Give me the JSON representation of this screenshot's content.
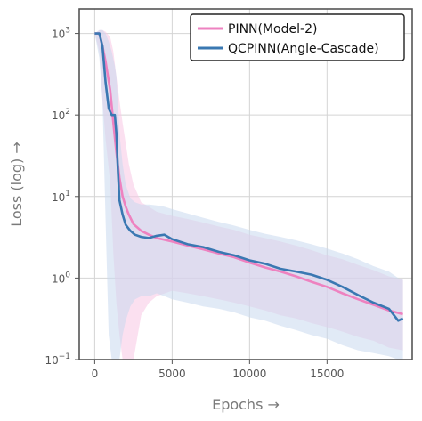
{
  "chart_data": {
    "type": "line",
    "title": "",
    "xlabel": "Epochs →",
    "ylabel": "Loss (log) →",
    "xlim": [
      -1000,
      20500
    ],
    "ylim": [
      0.1,
      2000
    ],
    "y_scale": "log",
    "grid": true,
    "legend_position": "top-right",
    "x_ticks": [
      0,
      5000,
      10000,
      15000
    ],
    "x_tick_labels": [
      "0",
      "5000",
      "10000",
      "15000"
    ],
    "y_ticks": [
      0.1,
      1,
      10,
      100,
      1000
    ],
    "y_tick_labels": [
      "10",
      "10",
      "10",
      "10",
      "10"
    ],
    "y_tick_exponents": [
      "−1",
      "0",
      "1",
      "2",
      "3"
    ],
    "series": [
      {
        "name": "PINN(Model-2)",
        "color": "#ee82c0",
        "band_color": "#f7c6e4",
        "x": [
          0,
          300,
          500,
          700,
          1000,
          1200,
          1400,
          1600,
          1800,
          2000,
          2200,
          2500,
          3000,
          3500,
          4000,
          5000,
          6000,
          7000,
          8000,
          9000,
          10000,
          11000,
          12000,
          13000,
          14000,
          15000,
          16000,
          17000,
          18000,
          19000,
          19900
        ],
        "values": [
          1000,
          1000,
          700,
          450,
          200,
          80,
          35,
          17,
          10,
          7.5,
          6,
          4.6,
          3.8,
          3.4,
          3.1,
          2.8,
          2.5,
          2.25,
          2.0,
          1.8,
          1.55,
          1.35,
          1.2,
          1.05,
          0.9,
          0.78,
          0.65,
          0.55,
          0.47,
          0.4,
          0.36
        ],
        "lower": [
          1000,
          600,
          150,
          50,
          15,
          2,
          0.5,
          0.2,
          0.1,
          0.1,
          0.1,
          0.1,
          0.35,
          0.5,
          0.6,
          0.7,
          0.65,
          0.6,
          0.55,
          0.5,
          0.45,
          0.4,
          0.35,
          0.32,
          0.28,
          0.25,
          0.22,
          0.19,
          0.17,
          0.14,
          0.13
        ],
        "upper": [
          1000,
          1100,
          1100,
          1050,
          900,
          600,
          300,
          150,
          80,
          45,
          25,
          14,
          8.5,
          7.5,
          6.5,
          5.8,
          5.3,
          4.8,
          4.3,
          3.9,
          3.4,
          3.1,
          2.8,
          2.5,
          2.2,
          1.9,
          1.7,
          1.45,
          1.25,
          1.05,
          0.95
        ]
      },
      {
        "name": "QCPINN(Angle-Cascade)",
        "color": "#3a78b2",
        "band_color": "#c9d8ee",
        "x": [
          0,
          300,
          500,
          700,
          900,
          1100,
          1300,
          1400,
          1500,
          1600,
          1800,
          2000,
          2300,
          2600,
          3000,
          3500,
          4000,
          4500,
          5000,
          6000,
          7000,
          8000,
          9000,
          10000,
          11000,
          12000,
          13000,
          14000,
          15000,
          16000,
          17000,
          18000,
          19000,
          19600,
          19900
        ],
        "values": [
          1000,
          1000,
          700,
          250,
          120,
          100,
          100,
          60,
          20,
          9,
          6,
          4.5,
          3.8,
          3.4,
          3.2,
          3.1,
          3.3,
          3.4,
          3.0,
          2.6,
          2.4,
          2.1,
          1.9,
          1.65,
          1.5,
          1.3,
          1.2,
          1.1,
          0.95,
          0.78,
          0.62,
          0.5,
          0.42,
          0.3,
          0.32
        ],
        "lower": [
          1000,
          500,
          150,
          5,
          0.2,
          0.1,
          0.1,
          0.1,
          0.1,
          0.1,
          0.2,
          0.3,
          0.45,
          0.55,
          0.6,
          0.6,
          0.65,
          0.6,
          0.55,
          0.5,
          0.45,
          0.42,
          0.38,
          0.33,
          0.3,
          0.26,
          0.23,
          0.2,
          0.18,
          0.15,
          0.13,
          0.12,
          0.11,
          0.1,
          0.1
        ],
        "upper": [
          1000,
          1100,
          1100,
          1000,
          800,
          600,
          400,
          300,
          150,
          60,
          25,
          14,
          9.5,
          8.5,
          8.0,
          8.0,
          7.8,
          7.5,
          7.0,
          6.2,
          5.5,
          4.9,
          4.4,
          3.9,
          3.5,
          3.2,
          2.9,
          2.6,
          2.3,
          2.0,
          1.7,
          1.4,
          1.2,
          1.0,
          0.95
        ]
      }
    ]
  }
}
